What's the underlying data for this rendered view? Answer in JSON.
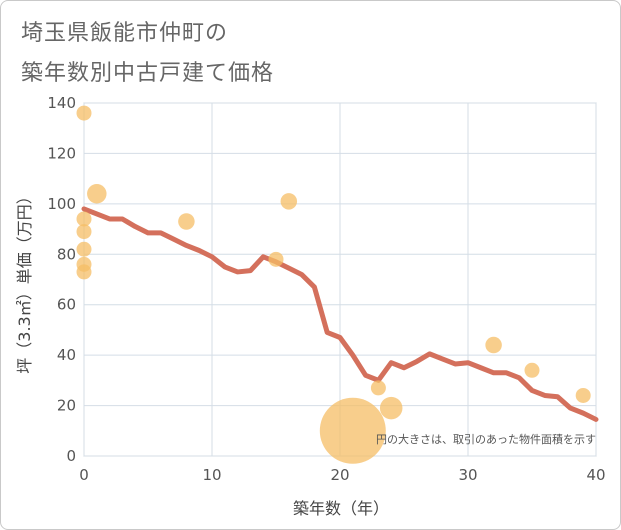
{
  "title_line1": "埼玉県飯能市仲町の",
  "title_line2": "築年数別中古戸建て価格",
  "chart_data": {
    "type": "scatter",
    "xlabel": "築年数（年）",
    "ylabel": "坪（3.3㎡）単価（万円）",
    "xlim": [
      0,
      40
    ],
    "ylim": [
      0,
      140
    ],
    "xticks": [
      0,
      10,
      20,
      30,
      40
    ],
    "yticks": [
      0,
      20,
      40,
      60,
      80,
      100,
      120,
      140
    ],
    "grid": true,
    "note": "円の大きさは、取引のあった物件面積を示す",
    "colors": {
      "points": "#f5be66",
      "line": "#d4705c",
      "grid": "#d4dde6"
    },
    "points": [
      {
        "x": 0,
        "y": 136,
        "size": 1
      },
      {
        "x": 0,
        "y": 94,
        "size": 1
      },
      {
        "x": 0,
        "y": 89,
        "size": 1
      },
      {
        "x": 0,
        "y": 82,
        "size": 1
      },
      {
        "x": 0,
        "y": 76,
        "size": 1
      },
      {
        "x": 0,
        "y": 73,
        "size": 1
      },
      {
        "x": 1,
        "y": 104,
        "size": 1.3
      },
      {
        "x": 8,
        "y": 93,
        "size": 1.1
      },
      {
        "x": 15,
        "y": 78,
        "size": 1
      },
      {
        "x": 16,
        "y": 101,
        "size": 1.1
      },
      {
        "x": 21,
        "y": 10,
        "size": 4.4
      },
      {
        "x": 23,
        "y": 27,
        "size": 1
      },
      {
        "x": 24,
        "y": 19,
        "size": 1.5
      },
      {
        "x": 32,
        "y": 44,
        "size": 1.1
      },
      {
        "x": 35,
        "y": 34,
        "size": 1
      },
      {
        "x": 39,
        "y": 24,
        "size": 1
      }
    ],
    "trend": {
      "x": [
        0,
        1,
        2,
        3,
        4,
        5,
        6,
        7,
        8,
        9,
        10,
        11,
        12,
        13,
        14,
        15,
        16,
        17,
        18,
        19,
        20,
        21,
        22,
        23,
        24,
        25,
        26,
        27,
        28,
        29,
        30,
        31,
        32,
        33,
        34,
        35,
        36,
        37,
        38,
        39,
        40
      ],
      "y": [
        98,
        96,
        94,
        94,
        91,
        88.5,
        88.5,
        86,
        83.5,
        81.5,
        79,
        75,
        73,
        73.5,
        79,
        77,
        74.5,
        72,
        67,
        49,
        47,
        40,
        32,
        30,
        37,
        35,
        37.5,
        40.5,
        38.5,
        36.5,
        37,
        35,
        33,
        33,
        31,
        26,
        24,
        23.5,
        19,
        17,
        14.5
      ]
    }
  }
}
